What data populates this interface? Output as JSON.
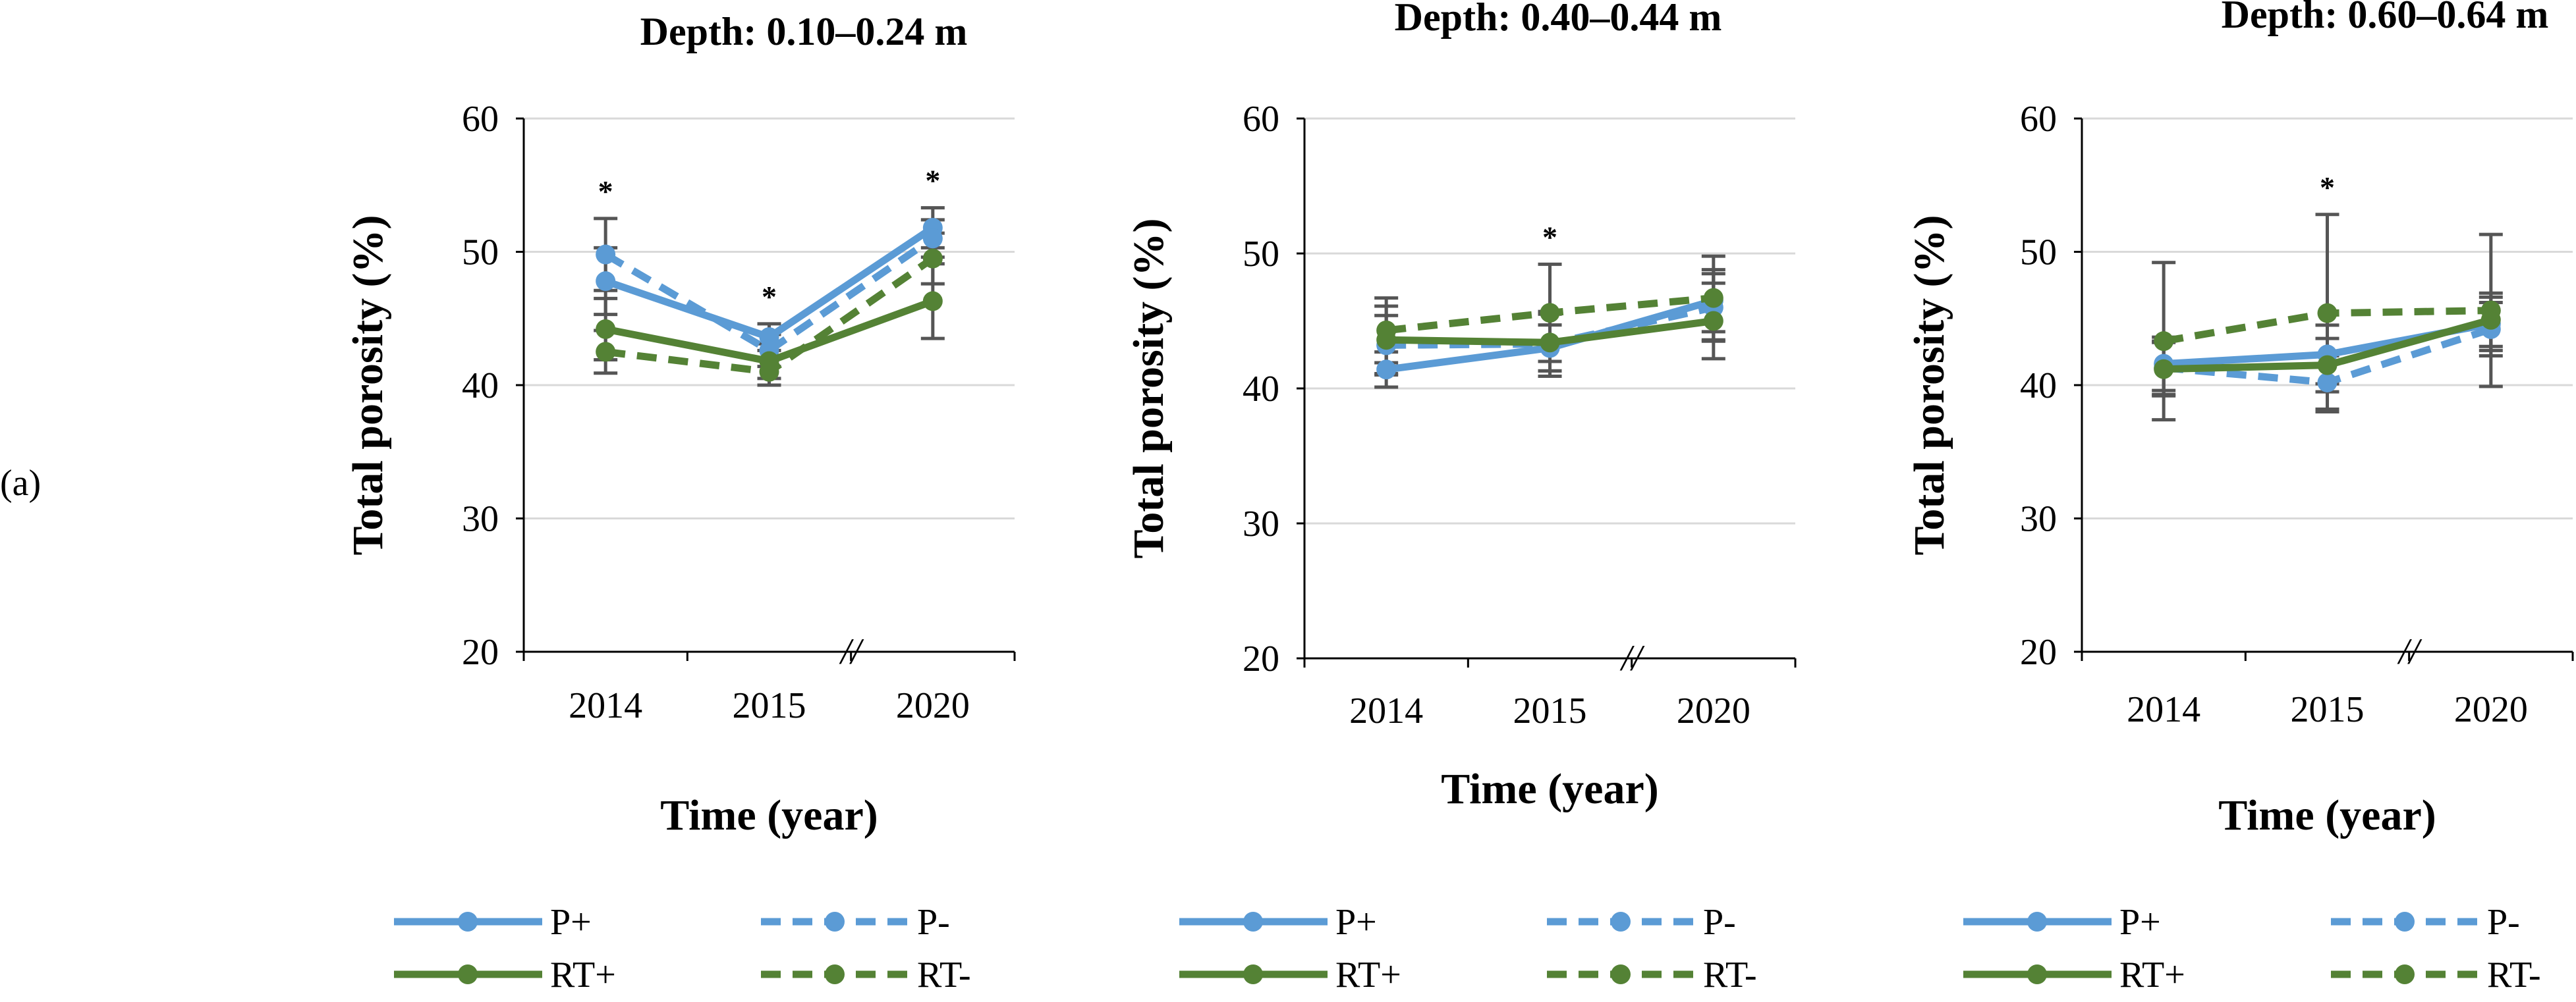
{
  "panel_label": "(a)",
  "chart_data": [
    {
      "type": "line",
      "title": "Depth: 0.10–0.24 m",
      "xlabel": "Time (year)",
      "ylabel": "Total porosity (%)",
      "categories": [
        "2014",
        "2015",
        "2020"
      ],
      "ylim": [
        20,
        60
      ],
      "yticks": [
        20,
        30,
        40,
        50,
        60
      ],
      "grid": true,
      "axis_break_label": "//",
      "significance": [
        "*",
        "*",
        "*"
      ],
      "series": [
        {
          "name": "P+",
          "values": [
            47.8,
            43.6,
            51.8
          ],
          "err": [
            2.5,
            1.0,
            1.5
          ]
        },
        {
          "name": "P-",
          "values": [
            49.8,
            42.6,
            51.0
          ],
          "err": [
            2.7,
            1.2,
            1.4
          ]
        },
        {
          "name": "RT+",
          "values": [
            44.2,
            41.8,
            46.3
          ],
          "err": [
            2.3,
            1.3,
            2.8
          ]
        },
        {
          "name": "RT-",
          "values": [
            42.5,
            41.0,
            49.5
          ],
          "err": [
            1.6,
            1.0,
            1.9
          ]
        }
      ]
    },
    {
      "type": "line",
      "title": "Depth: 0.40–0.44 m",
      "xlabel": "Time (year)",
      "ylabel": "Total porosity (%)",
      "categories": [
        "2014",
        "2015",
        "2020"
      ],
      "ylim": [
        20,
        60
      ],
      "yticks": [
        20,
        30,
        40,
        50,
        60
      ],
      "grid": true,
      "axis_break_label": "//",
      "significance": [
        "",
        "*",
        ""
      ],
      "series": [
        {
          "name": "P+",
          "values": [
            41.4,
            43.0,
            46.5
          ],
          "err": [
            1.3,
            1.7,
            2.3
          ]
        },
        {
          "name": "P-",
          "values": [
            43.2,
            43.3,
            46.0
          ],
          "err": [
            2.2,
            2.4,
            2.5
          ]
        },
        {
          "name": "RT+",
          "values": [
            43.6,
            43.4,
            45.0
          ],
          "err": [
            2.5,
            2.1,
            2.8
          ]
        },
        {
          "name": "RT-",
          "values": [
            44.3,
            45.6,
            46.7
          ],
          "err": [
            2.4,
            3.6,
            3.1
          ]
        }
      ]
    },
    {
      "type": "line",
      "title": "Depth: 0.60–0.64 m",
      "xlabel": "Time (year)",
      "ylabel": "Total porosity (%)",
      "categories": [
        "2014",
        "2015",
        "2020"
      ],
      "ylim": [
        20,
        60
      ],
      "yticks": [
        20,
        30,
        40,
        50,
        60
      ],
      "grid": true,
      "axis_break_label": "//",
      "significance": [
        "",
        "*",
        ""
      ],
      "series": [
        {
          "name": "P+",
          "values": [
            41.6,
            42.3,
            44.6
          ],
          "err": [
            2.0,
            2.2,
            2.0
          ]
        },
        {
          "name": "P-",
          "values": [
            41.3,
            40.2,
            44.2
          ],
          "err": [
            2.0,
            2.0,
            2.0
          ]
        },
        {
          "name": "RT+",
          "values": [
            41.2,
            41.5,
            44.9
          ],
          "err": [
            2.0,
            2.0,
            2.0
          ]
        },
        {
          "name": "RT-",
          "values": [
            43.3,
            45.4,
            45.6
          ],
          "err": [
            5.9,
            7.4,
            5.7
          ]
        }
      ]
    }
  ],
  "legend": [
    {
      "name": "P+",
      "color": "#5b9bd5",
      "dash": "solid"
    },
    {
      "name": "P-",
      "color": "#5b9bd5",
      "dash": "dashed"
    },
    {
      "name": "RT+",
      "color": "#548235",
      "dash": "solid"
    },
    {
      "name": "RT-",
      "color": "#548235",
      "dash": "dashed"
    }
  ]
}
